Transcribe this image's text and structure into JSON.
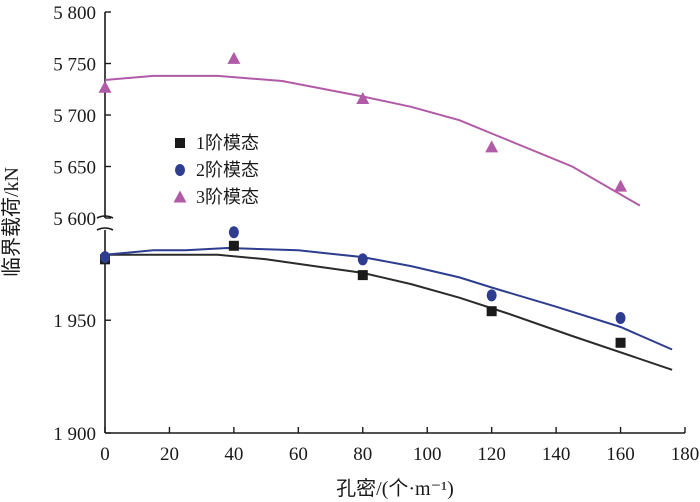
{
  "chart_data": {
    "type": "scatter",
    "title": "",
    "xlabel": "孔密/(个·m⁻¹)",
    "ylabel": "临界载荷/kN",
    "xlim": [
      0,
      180
    ],
    "x_ticks": [
      "0",
      "20",
      "40",
      "60",
      "80",
      "100",
      "120",
      "140",
      "160",
      "180"
    ],
    "axis_break": true,
    "upper_panel": {
      "ylim": [
        5600,
        5800
      ],
      "y_ticks": [
        "5 600",
        "5 650",
        "5 700",
        "5 750",
        "5 800"
      ]
    },
    "lower_panel": {
      "ylim": [
        1900,
        1990
      ],
      "y_ticks": [
        "1 900",
        "1 950"
      ]
    },
    "legend": {
      "position": "left-middle"
    },
    "series": [
      {
        "name": "1阶模态",
        "panel": "lower",
        "marker": "square",
        "color": "#1a1a1a",
        "line_color": "#2b2b2b",
        "points": [
          [
            0,
            1977
          ],
          [
            40,
            1983
          ],
          [
            80,
            1970
          ],
          [
            120,
            1954
          ],
          [
            160,
            1940
          ]
        ],
        "fit": [
          [
            0,
            1979
          ],
          [
            20,
            1979
          ],
          [
            35,
            1979
          ],
          [
            50,
            1977
          ],
          [
            65,
            1974
          ],
          [
            80,
            1971
          ],
          [
            95,
            1966
          ],
          [
            110,
            1960
          ],
          [
            125,
            1953
          ],
          [
            145,
            1943
          ],
          [
            176,
            1928
          ]
        ]
      },
      {
        "name": "2阶模态",
        "panel": "lower",
        "marker": "circle",
        "color": "#2e3d8f",
        "line_color": "#2e3d8f",
        "points": [
          [
            0,
            1978
          ],
          [
            40,
            1989
          ],
          [
            80,
            1977
          ],
          [
            120,
            1961
          ],
          [
            160,
            1951
          ]
        ],
        "fit": [
          [
            0,
            1979
          ],
          [
            15,
            1981
          ],
          [
            25,
            1981
          ],
          [
            38,
            1982
          ],
          [
            50,
            1981.5
          ],
          [
            60,
            1981
          ],
          [
            70,
            1979.5
          ],
          [
            80,
            1978
          ],
          [
            95,
            1974
          ],
          [
            110,
            1969
          ],
          [
            120,
            1964.5
          ],
          [
            140,
            1956
          ],
          [
            160,
            1947
          ],
          [
            176,
            1937
          ]
        ]
      },
      {
        "name": "3阶模态",
        "panel": "upper",
        "marker": "triangle",
        "color": "#b05aa8",
        "line_color": "#b05aa8",
        "points": [
          [
            0,
            5727
          ],
          [
            40,
            5755
          ],
          [
            80,
            5716
          ],
          [
            120,
            5669
          ],
          [
            160,
            5631
          ]
        ],
        "fit": [
          [
            0,
            5734
          ],
          [
            15,
            5738
          ],
          [
            35,
            5738
          ],
          [
            55,
            5733
          ],
          [
            80,
            5718
          ],
          [
            95,
            5708
          ],
          [
            110,
            5695
          ],
          [
            120,
            5682
          ],
          [
            145,
            5650
          ],
          [
            166,
            5612
          ]
        ]
      }
    ]
  }
}
